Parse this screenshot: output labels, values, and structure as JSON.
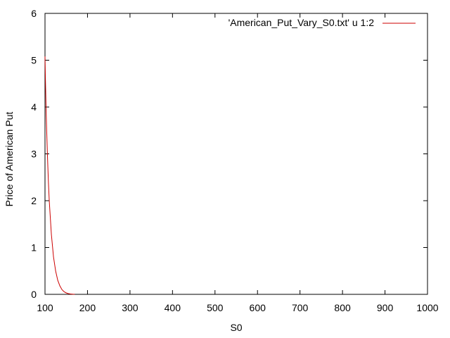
{
  "chart_data": {
    "type": "line",
    "title": "",
    "xlabel": "S0",
    "ylabel": "Price of American Put",
    "xlim": [
      100,
      1000
    ],
    "ylim": [
      0,
      6
    ],
    "xticks": [
      100,
      200,
      300,
      400,
      500,
      600,
      700,
      800,
      900,
      1000
    ],
    "yticks": [
      0,
      1,
      2,
      3,
      4,
      5,
      6
    ],
    "grid": false,
    "legend_position": "top-right",
    "series": [
      {
        "name": "'American_Put_Vary_S0.txt' u 1:2",
        "color": "#cc0000",
        "x": [
          100,
          101,
          102,
          103,
          104,
          106,
          108,
          110,
          115,
          120,
          125,
          130,
          135,
          140,
          145,
          150,
          155,
          160,
          165,
          170
        ],
        "y": [
          5.08,
          4.6,
          4.2,
          3.8,
          3.48,
          2.9,
          2.4,
          2.0,
          1.28,
          0.8,
          0.5,
          0.3,
          0.18,
          0.1,
          0.055,
          0.03,
          0.015,
          0.008,
          0.004,
          0.002
        ]
      }
    ]
  }
}
